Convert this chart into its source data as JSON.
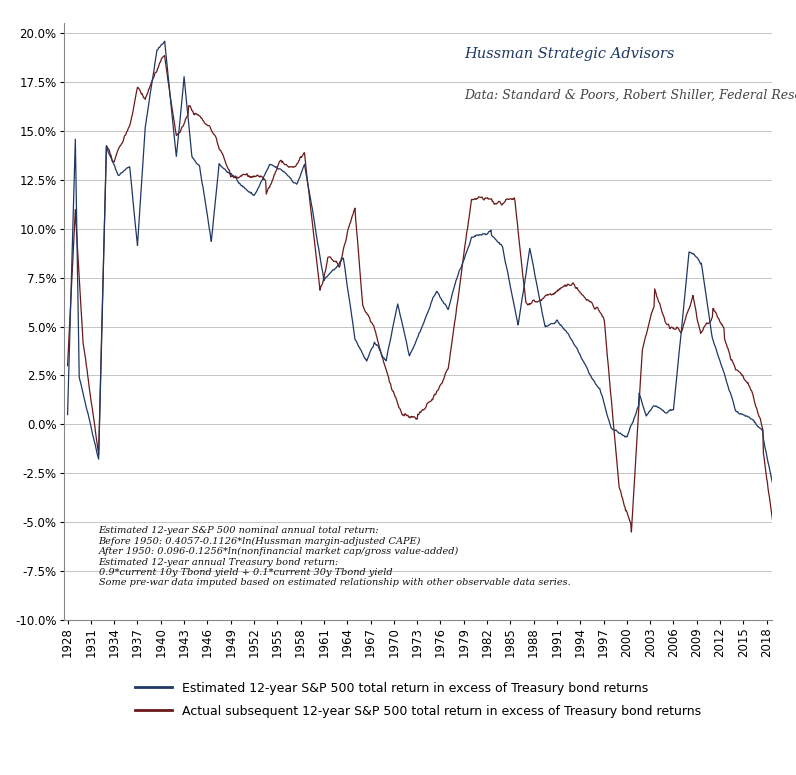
{
  "title": "Hussman Strategic Advisors",
  "subtitle": "Data: Standard & Poors, Robert Shiller, Federal Reserve",
  "annotation": "Estimated 12-year S&P 500 nominal annual total return:\nBefore 1950: 0.4057-0.1126*ln(Hussman margin-adjusted CAPE)\nAfter 1950: 0.096-0.1256*ln(nonfinancial market cap/gross value-added)\nEstimated 12-year annual Treasury bond return:\n0.9*current 10y Tbond yield + 0.1*current 30y Tbond yield\nSome pre-war data imputed based on estimated relationship with other observable data series.",
  "legend_estimated": "Estimated 12-year S&P 500 total return in excess of Treasury bond returns",
  "legend_actual": "Actual subsequent 12-year S&P 500 total return in excess of Treasury bond returns",
  "color_estimated": "#1F3864",
  "color_actual": "#6B1A1A",
  "ylim": [
    -0.1,
    0.205
  ],
  "yticks": [
    -0.1,
    -0.075,
    -0.05,
    -0.025,
    0.0,
    0.025,
    0.05,
    0.075,
    0.1,
    0.125,
    0.15,
    0.175,
    0.2
  ],
  "background": "#FFFFFF",
  "line_width": 0.9
}
